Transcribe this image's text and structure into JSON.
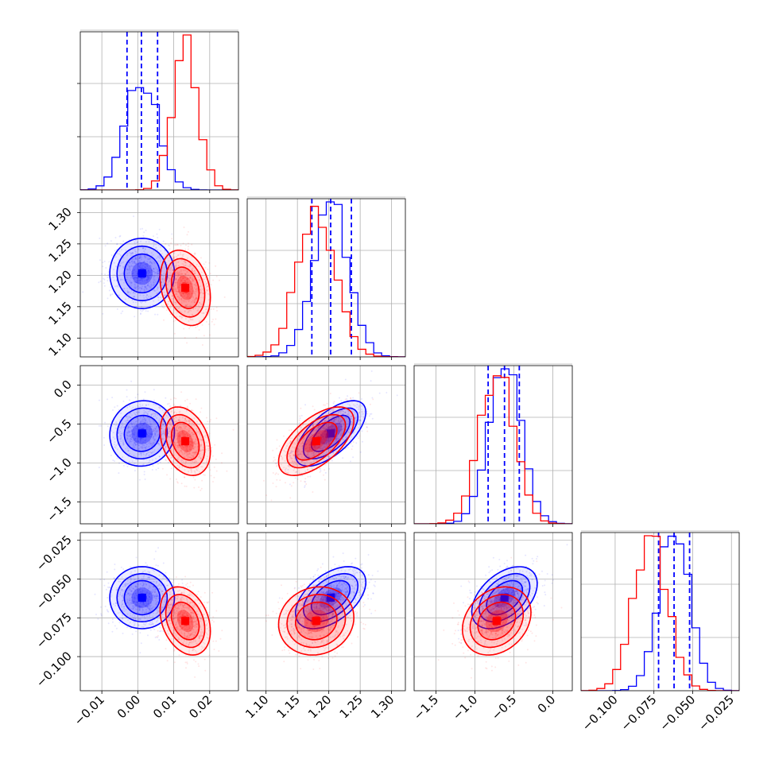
{
  "chart_data": {
    "type": "corner",
    "grid": true,
    "quantile_lines": {
      "color": "#0000ff",
      "style": "dashed",
      "series": "blue"
    },
    "series": [
      {
        "color": "#0000ff",
        "mean": [
          0.0012,
          1.203,
          -0.62,
          -0.062
        ],
        "sd": [
          0.0045,
          0.028,
          0.21,
          0.01
        ],
        "quantiles": [
          [
            -0.003,
            0.001,
            0.0055
          ],
          [
            1.173,
            1.203,
            1.236
          ],
          [
            -0.83,
            -0.62,
            -0.43
          ],
          [
            -0.072,
            -0.062,
            -0.052
          ]
        ],
        "corr": {
          "0,2": 0.05,
          "1,2": 0.65,
          "1,3": 0.5,
          "2,3": 0.45
        }
      },
      {
        "color": "#ff0000",
        "mean": [
          0.0132,
          1.18,
          -0.72,
          -0.077
        ],
        "sd": [
          0.0035,
          0.03,
          0.22,
          0.011
        ],
        "corr": {
          "0,1": -0.25,
          "0,2": -0.3,
          "0,3": -0.3,
          "1,2": 0.6,
          "1,3": 0.1,
          "2,3": 0.25
        }
      }
    ],
    "params": [
      {
        "range": [
          -0.016,
          0.028
        ],
        "ticks": [
          -0.01,
          0.0,
          0.01,
          0.02
        ],
        "tick_labels": [
          "−0.01",
          "0.00",
          "0.01",
          "0.02"
        ]
      },
      {
        "range": [
          1.07,
          1.322
        ],
        "ticks": [
          1.1,
          1.15,
          1.2,
          1.25,
          1.3
        ],
        "tick_labels": [
          "1.10",
          "1.15",
          "1.20",
          "1.25",
          "1.30"
        ]
      },
      {
        "range": [
          -1.78,
          0.25
        ],
        "ticks": [
          -1.5,
          -1.0,
          -0.5,
          0.0
        ],
        "tick_labels": [
          "−1.5",
          "−1.0",
          "−0.5",
          "0.0"
        ]
      },
      {
        "range": [
          -0.122,
          -0.02
        ],
        "ticks": [
          -0.1,
          -0.075,
          -0.05,
          -0.025
        ],
        "tick_labels": [
          "−0.100",
          "−0.075",
          "−0.050",
          "−0.025"
        ],
        "row_tick_labels": [
          "−0.025",
          "−0.050",
          "−0.075",
          "−0.100"
        ]
      }
    ]
  }
}
